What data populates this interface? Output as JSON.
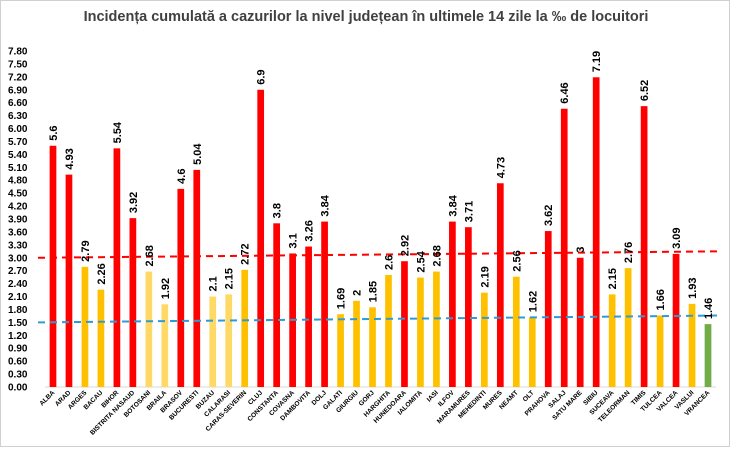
{
  "chart_data": {
    "type": "bar",
    "title": "Incidența cumulată a cazurilor la nivel județean în ultimele 14 zile la ‰ de locuitori",
    "xlabel": "",
    "ylabel": "",
    "ylim": [
      0,
      7.8
    ],
    "yticks": [
      "0.00",
      "0.30",
      "0.60",
      "0.90",
      "1.20",
      "1.50",
      "1.80",
      "2.10",
      "2.40",
      "2.70",
      "3.00",
      "3.30",
      "3.60",
      "3.90",
      "4.20",
      "4.50",
      "4.80",
      "5.10",
      "5.40",
      "5.70",
      "6.00",
      "6.30",
      "6.60",
      "6.90",
      "7.20",
      "7.50",
      "7.80"
    ],
    "categories": [
      "ALBA",
      "ARAD",
      "ARGES",
      "BACAU",
      "BIHOR",
      "BISTRITA NASAUD",
      "BOTOSANI",
      "BRAILA",
      "BRASOV",
      "BUCURESTI",
      "BUZAU",
      "CALARASI",
      "CARAS-SEVERIN",
      "CLUJ",
      "CONSTANTA",
      "COVASNA",
      "DAMBOVITA",
      "DOLJ",
      "GALATI",
      "GIURGIU",
      "GORJ",
      "HARGHITA",
      "HUNEDOARA",
      "IALOMITA",
      "IASI",
      "ILFOV",
      "MARAMURES",
      "MEHEDINTI",
      "MURES",
      "NEAMT",
      "OLT",
      "PRAHOVA",
      "SALAJ",
      "SATU MARE",
      "SIBIU",
      "SUCEAVA",
      "TELEORMAN",
      "TIMIS",
      "TULCEA",
      "VALCEA",
      "VASLUI",
      "VRANCEA"
    ],
    "values": [
      5.6,
      4.93,
      2.79,
      2.26,
      5.54,
      3.92,
      2.68,
      1.92,
      4.6,
      5.04,
      2.1,
      2.15,
      2.72,
      6.9,
      3.8,
      3.1,
      3.26,
      3.84,
      1.69,
      2,
      1.85,
      2.6,
      2.92,
      2.54,
      2.68,
      3.84,
      3.71,
      2.19,
      4.73,
      2.56,
      1.62,
      3.62,
      6.46,
      3,
      7.19,
      2.15,
      2.76,
      6.52,
      1.66,
      3.09,
      1.93,
      1.46
    ],
    "data_labels": [
      "5.6",
      "4.93",
      "2.79",
      "2.26",
      "5.54",
      "3.92",
      "2.68",
      "1.92",
      "4.6",
      "5.04",
      "2.1",
      "2.15",
      "2.72",
      "6.9",
      "3.8",
      "3.1",
      "3.26",
      "3.84",
      "1.69",
      "2",
      "1.85",
      "2.6",
      "2.92",
      "2.54",
      "2.68",
      "3.84",
      "3.71",
      "2.19",
      "4.73",
      "2.56",
      "1.62",
      "3.62",
      "6.46",
      "3",
      "7.19",
      "2.15",
      "2.76",
      "6.52",
      "1.66",
      "3.09",
      "1.93",
      "1.46"
    ],
    "bar_colors": [
      "#ff0000",
      "#ff0000",
      "#ffc000",
      "#ffc000",
      "#ff0000",
      "#ff0000",
      "#ffd966",
      "#ffd966",
      "#ff0000",
      "#ff0000",
      "#ffd966",
      "#ffd966",
      "#ffc000",
      "#ff0000",
      "#ff0000",
      "#ff0000",
      "#ff0000",
      "#ff0000",
      "#ffc000",
      "#ffc000",
      "#ffc000",
      "#ffc000",
      "#ff0000",
      "#ffc000",
      "#ffc000",
      "#ff0000",
      "#ff0000",
      "#ffc000",
      "#ff0000",
      "#ffc000",
      "#ffc000",
      "#ff0000",
      "#ff0000",
      "#ff0000",
      "#ff0000",
      "#ffc000",
      "#ffc000",
      "#ff0000",
      "#ffc000",
      "#ff0000",
      "#ffc000",
      "#70ad47"
    ],
    "reference_lines": [
      {
        "color": "#ff0000",
        "style": "dashed",
        "y_start": 3.0,
        "y_end": 3.15
      },
      {
        "color": "#2e9bd6",
        "style": "dashed",
        "y_start": 1.5,
        "y_end": 1.66
      }
    ],
    "grid": false,
    "legend": "none"
  }
}
